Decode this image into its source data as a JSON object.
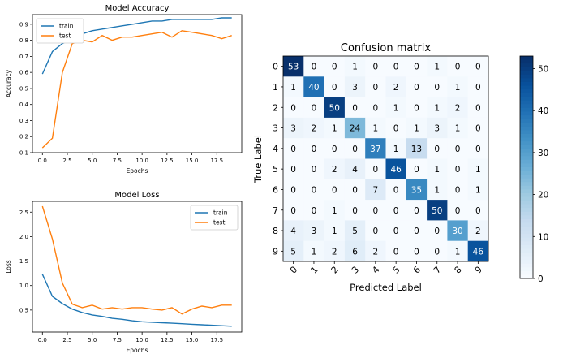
{
  "chart_data": [
    {
      "type": "line",
      "title": "Model Accuracy",
      "xlabel": "Epochs",
      "ylabel": "Accuracy",
      "xlim": [
        -1,
        20
      ],
      "ylim": [
        0.1,
        0.96
      ],
      "xticks": [
        0.0,
        2.5,
        5.0,
        7.5,
        10.0,
        12.5,
        15.0,
        17.5
      ],
      "yticks": [
        0.1,
        0.2,
        0.3,
        0.4,
        0.5,
        0.6,
        0.7,
        0.8,
        0.9
      ],
      "legend": "top-left",
      "x": [
        0,
        1,
        2,
        3,
        4,
        5,
        6,
        7,
        8,
        9,
        10,
        11,
        12,
        13,
        14,
        15,
        16,
        17,
        18,
        19
      ],
      "series": [
        {
          "name": "train",
          "color": "#1f77b4",
          "values": [
            0.59,
            0.73,
            0.78,
            0.81,
            0.84,
            0.86,
            0.87,
            0.88,
            0.89,
            0.9,
            0.91,
            0.92,
            0.92,
            0.93,
            0.93,
            0.93,
            0.93,
            0.93,
            0.94,
            0.94
          ]
        },
        {
          "name": "test",
          "color": "#ff7f0e",
          "values": [
            0.13,
            0.19,
            0.6,
            0.78,
            0.8,
            0.79,
            0.83,
            0.8,
            0.82,
            0.82,
            0.83,
            0.84,
            0.85,
            0.82,
            0.86,
            0.85,
            0.84,
            0.83,
            0.81,
            0.83
          ]
        }
      ]
    },
    {
      "type": "line",
      "title": "Model Loss",
      "xlabel": "Epochs",
      "ylabel": "Loss",
      "xlim": [
        -1,
        20
      ],
      "ylim": [
        0.05,
        2.72
      ],
      "xticks": [
        0.0,
        2.5,
        5.0,
        7.5,
        10.0,
        12.5,
        15.0,
        17.5
      ],
      "yticks": [
        0.5,
        1.0,
        1.5,
        2.0,
        2.5
      ],
      "legend": "top-right",
      "x": [
        0,
        1,
        2,
        3,
        4,
        5,
        6,
        7,
        8,
        9,
        10,
        11,
        12,
        13,
        14,
        15,
        16,
        17,
        18,
        19
      ],
      "series": [
        {
          "name": "train",
          "color": "#1f77b4",
          "values": [
            1.23,
            0.78,
            0.63,
            0.52,
            0.45,
            0.4,
            0.37,
            0.33,
            0.31,
            0.28,
            0.26,
            0.25,
            0.24,
            0.23,
            0.22,
            0.21,
            0.2,
            0.19,
            0.18,
            0.17
          ]
        },
        {
          "name": "test",
          "color": "#ff7f0e",
          "values": [
            2.62,
            1.95,
            1.05,
            0.62,
            0.55,
            0.6,
            0.52,
            0.55,
            0.52,
            0.55,
            0.55,
            0.52,
            0.5,
            0.55,
            0.42,
            0.52,
            0.58,
            0.55,
            0.6,
            0.6
          ]
        }
      ]
    },
    {
      "type": "heatmap",
      "title": "Confusion matrix",
      "xlabel": "Predicted Label",
      "ylabel": "True Label",
      "labels": [
        "0",
        "1",
        "2",
        "3",
        "4",
        "5",
        "6",
        "7",
        "8",
        "9"
      ],
      "colorbar_ticks": [
        0,
        10,
        20,
        30,
        40,
        50
      ],
      "vmax": 53,
      "colormap": "Blues",
      "matrix": [
        [
          53,
          0,
          0,
          1,
          0,
          0,
          0,
          1,
          0,
          0
        ],
        [
          1,
          40,
          0,
          3,
          0,
          2,
          0,
          0,
          1,
          0
        ],
        [
          0,
          0,
          50,
          0,
          0,
          1,
          0,
          1,
          2,
          0
        ],
        [
          3,
          2,
          1,
          24,
          1,
          0,
          1,
          3,
          1,
          0
        ],
        [
          0,
          0,
          0,
          0,
          37,
          1,
          13,
          0,
          0,
          0
        ],
        [
          0,
          0,
          2,
          4,
          0,
          46,
          0,
          1,
          0,
          1
        ],
        [
          0,
          0,
          0,
          0,
          7,
          0,
          35,
          1,
          0,
          1
        ],
        [
          0,
          0,
          1,
          0,
          0,
          0,
          0,
          50,
          0,
          0
        ],
        [
          4,
          3,
          1,
          5,
          0,
          0,
          0,
          0,
          30,
          2
        ],
        [
          5,
          1,
          2,
          6,
          2,
          0,
          0,
          0,
          1,
          46
        ]
      ]
    }
  ]
}
